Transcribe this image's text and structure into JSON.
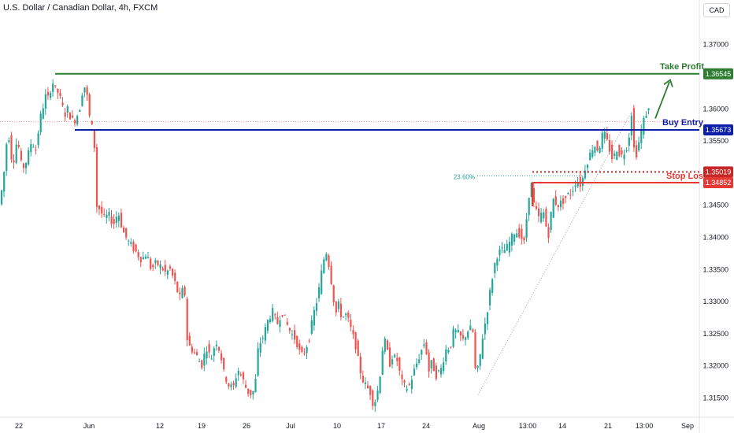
{
  "header": {
    "title": "U.S. Dollar / Canadian Dollar, 4h, FXCM",
    "currency": "CAD"
  },
  "chart_data": {
    "type": "candlestick",
    "symbol": "USDCAD",
    "timeframe": "4h",
    "source": "FXCM",
    "ylim": [
      1.312,
      1.374
    ],
    "y_ticks": [
      "1.37000",
      "1.36500",
      "1.36000",
      "1.35500",
      "1.35000",
      "1.34500",
      "1.34000",
      "1.33500",
      "1.33000",
      "1.32500",
      "1.32000",
      "1.31500"
    ],
    "y_tick_values": [
      1.37,
      1.365,
      1.36,
      1.355,
      1.35,
      1.345,
      1.34,
      1.335,
      1.33,
      1.325,
      1.32,
      1.315
    ],
    "x_ticks": [
      "22",
      "Jun",
      "12",
      "19",
      "26",
      "Jul",
      "10",
      "17",
      "24",
      "Aug",
      "13:00",
      "14",
      "21",
      "13:00",
      "Sep"
    ],
    "path_points": [
      [
        0,
        1.3445
      ],
      [
        6,
        1.3485
      ],
      [
        12,
        1.357
      ],
      [
        18,
        1.351
      ],
      [
        24,
        1.3555
      ],
      [
        30,
        1.3505
      ],
      [
        36,
        1.352
      ],
      [
        42,
        1.355
      ],
      [
        48,
        1.3535
      ],
      [
        52,
        1.358
      ],
      [
        56,
        1.36
      ],
      [
        60,
        1.362
      ],
      [
        64,
        1.3615
      ],
      [
        68,
        1.3645
      ],
      [
        72,
        1.363
      ],
      [
        76,
        1.3625
      ],
      [
        80,
        1.361
      ],
      [
        84,
        1.359
      ],
      [
        88,
        1.36
      ],
      [
        92,
        1.3585
      ],
      [
        96,
        1.358
      ],
      [
        100,
        1.359
      ],
      [
        104,
        1.3605
      ],
      [
        108,
        1.364
      ],
      [
        112,
        1.3625
      ],
      [
        116,
        1.3585
      ],
      [
        120,
        1.3565
      ],
      [
        122,
        1.354
      ],
      [
        124,
        1.345
      ],
      [
        128,
        1.3445
      ],
      [
        134,
        1.343
      ],
      [
        140,
        1.3435
      ],
      [
        146,
        1.342
      ],
      [
        152,
        1.344
      ],
      [
        158,
        1.341
      ],
      [
        164,
        1.3395
      ],
      [
        170,
        1.3385
      ],
      [
        176,
        1.3375
      ],
      [
        182,
        1.3365
      ],
      [
        188,
        1.3375
      ],
      [
        194,
        1.335
      ],
      [
        200,
        1.336
      ],
      [
        206,
        1.3355
      ],
      [
        212,
        1.3345
      ],
      [
        218,
        1.335
      ],
      [
        224,
        1.333
      ],
      [
        230,
        1.3305
      ],
      [
        236,
        1.3325
      ],
      [
        240,
        1.3235
      ],
      [
        246,
        1.3225
      ],
      [
        252,
        1.3215
      ],
      [
        258,
        1.32
      ],
      [
        264,
        1.323
      ],
      [
        270,
        1.321
      ],
      [
        276,
        1.324
      ],
      [
        282,
        1.322
      ],
      [
        286,
        1.319
      ],
      [
        292,
        1.317
      ],
      [
        298,
        1.3165
      ],
      [
        304,
        1.3195
      ],
      [
        310,
        1.318
      ],
      [
        316,
        1.316
      ],
      [
        322,
        1.3155
      ],
      [
        326,
        1.317
      ],
      [
        330,
        1.323
      ],
      [
        336,
        1.3245
      ],
      [
        342,
        1.327
      ],
      [
        348,
        1.3285
      ],
      [
        354,
        1.3265
      ],
      [
        360,
        1.3285
      ],
      [
        366,
        1.3265
      ],
      [
        372,
        1.325
      ],
      [
        378,
        1.324
      ],
      [
        384,
        1.3215
      ],
      [
        388,
        1.322
      ],
      [
        394,
        1.324
      ],
      [
        400,
        1.328
      ],
      [
        406,
        1.331
      ],
      [
        412,
        1.336
      ],
      [
        416,
        1.338
      ],
      [
        420,
        1.3355
      ],
      [
        424,
        1.332
      ],
      [
        428,
        1.328
      ],
      [
        432,
        1.3295
      ],
      [
        436,
        1.3275
      ],
      [
        442,
        1.328
      ],
      [
        448,
        1.3255
      ],
      [
        454,
        1.323
      ],
      [
        458,
        1.32
      ],
      [
        462,
        1.318
      ],
      [
        466,
        1.317
      ],
      [
        472,
        1.316
      ],
      [
        476,
        1.314
      ],
      [
        480,
        1.315
      ],
      [
        484,
        1.318
      ],
      [
        488,
        1.323
      ],
      [
        492,
        1.324
      ],
      [
        496,
        1.32
      ],
      [
        500,
        1.3215
      ],
      [
        506,
        1.321
      ],
      [
        512,
        1.3175
      ],
      [
        518,
        1.3165
      ],
      [
        522,
        1.317
      ],
      [
        526,
        1.3185
      ],
      [
        530,
        1.32
      ],
      [
        536,
        1.322
      ],
      [
        542,
        1.324
      ],
      [
        546,
        1.319
      ],
      [
        550,
        1.3205
      ],
      [
        556,
        1.3185
      ],
      [
        562,
        1.3195
      ],
      [
        568,
        1.3225
      ],
      [
        574,
        1.323
      ],
      [
        578,
        1.3255
      ],
      [
        584,
        1.325
      ],
      [
        590,
        1.324
      ],
      [
        596,
        1.3255
      ],
      [
        602,
        1.326
      ],
      [
        606,
        1.3185
      ],
      [
        610,
        1.32
      ],
      [
        614,
        1.324
      ],
      [
        620,
        1.328
      ],
      [
        626,
        1.333
      ],
      [
        632,
        1.337
      ],
      [
        638,
        1.338
      ],
      [
        644,
        1.338
      ],
      [
        650,
        1.3395
      ],
      [
        656,
        1.341
      ],
      [
        662,
        1.3405
      ],
      [
        668,
        1.339
      ],
      [
        672,
        1.345
      ],
      [
        676,
        1.349
      ],
      [
        680,
        1.345
      ],
      [
        686,
        1.343
      ],
      [
        692,
        1.344
      ],
      [
        698,
        1.34
      ],
      [
        704,
        1.346
      ],
      [
        710,
        1.345
      ],
      [
        716,
        1.3455
      ],
      [
        722,
        1.3465
      ],
      [
        728,
        1.347
      ],
      [
        734,
        1.349
      ],
      [
        740,
        1.348
      ],
      [
        744,
        1.3505
      ],
      [
        750,
        1.3525
      ],
      [
        756,
        1.3545
      ],
      [
        762,
        1.3535
      ],
      [
        768,
        1.3565
      ],
      [
        774,
        1.3545
      ],
      [
        780,
        1.352
      ],
      [
        786,
        1.354
      ],
      [
        790,
        1.3525
      ],
      [
        796,
        1.3535
      ],
      [
        800,
        1.355
      ],
      [
        804,
        1.3595
      ],
      [
        808,
        1.352
      ],
      [
        812,
        1.354
      ],
      [
        816,
        1.3565
      ],
      [
        820,
        1.3585
      ],
      [
        824,
        1.3598
      ]
    ],
    "levels": [
      {
        "name": "Take Profit",
        "label": "Take Profit",
        "value": 1.36545,
        "value_text": "1.36545",
        "color": "#2e7d32"
      },
      {
        "name": "Buy Entry",
        "label": "Buy Entry",
        "value": 1.35673,
        "value_text": "1.35673",
        "color": "#0d1fa8"
      },
      {
        "name": "Stop Loss",
        "label": "Stop Loss",
        "value": 1.34852,
        "value_text": "1.34852",
        "color": "#e53935"
      },
      {
        "name": "Fib 23.60%",
        "label": "23.60%",
        "value": 1.35019,
        "value_text": "1.35019",
        "color": "#c62828"
      }
    ],
    "current_price": 1.358,
    "colors": {
      "up": "#26a69a",
      "down": "#ef5350",
      "grid": "#f0f3fa",
      "axis_text": "#131722",
      "fib_label": "#26a69a",
      "trendline": "#9aa3b5"
    },
    "grid": false
  }
}
